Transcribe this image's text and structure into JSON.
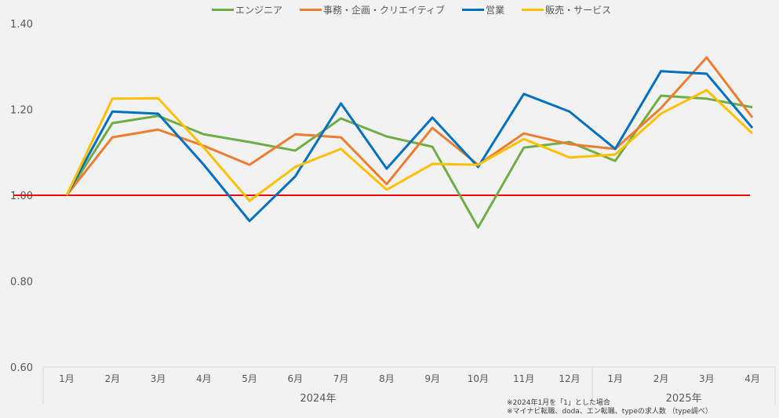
{
  "chart_data": {
    "type": "line",
    "title": "",
    "x": [
      "1月",
      "2月",
      "3月",
      "4月",
      "5月",
      "6月",
      "7月",
      "8月",
      "9月",
      "10月",
      "11月",
      "12月",
      "1月",
      "2月",
      "3月",
      "4月"
    ],
    "year_groups": [
      {
        "label": "2024年",
        "count": 12
      },
      {
        "label": "2025年",
        "count": 4
      }
    ],
    "ylim": [
      0.6,
      1.4
    ],
    "yticks": [
      "0.60",
      "0.80",
      "1.00",
      "1.20",
      "1.40"
    ],
    "yticks_values": [
      0.6,
      0.8,
      1.0,
      1.2,
      1.4
    ],
    "reference_line": {
      "value": 1.0,
      "color": "#ff0000"
    },
    "grid": false,
    "legend_position": "top",
    "series": [
      {
        "name": "エンジニア",
        "color": "#70ad47",
        "values": [
          1.0,
          1.168,
          1.185,
          1.142,
          1.124,
          1.104,
          1.179,
          1.137,
          1.113,
          0.925,
          1.111,
          1.124,
          1.08,
          1.232,
          1.225,
          1.205
        ]
      },
      {
        "name": "事務・企画・クリエイティブ",
        "color": "#ed7d31",
        "values": [
          1.0,
          1.135,
          1.153,
          1.115,
          1.071,
          1.142,
          1.135,
          1.026,
          1.157,
          1.071,
          1.144,
          1.119,
          1.108,
          1.203,
          1.321,
          1.181
        ]
      },
      {
        "name": "営業",
        "color": "#0070c0",
        "values": [
          1.0,
          1.195,
          1.19,
          1.071,
          0.94,
          1.044,
          1.214,
          1.062,
          1.181,
          1.066,
          1.236,
          1.195,
          1.108,
          1.289,
          1.283,
          1.157
        ]
      },
      {
        "name": "販売・サービス",
        "color": "#ffc000",
        "values": [
          1.0,
          1.225,
          1.226,
          1.111,
          0.987,
          1.066,
          1.108,
          1.013,
          1.073,
          1.071,
          1.131,
          1.088,
          1.095,
          1.19,
          1.245,
          1.144
        ]
      }
    ],
    "notes": [
      "※2024年1月を「1」とした場合",
      "※マイナビ転職、doda、エン転職、typeの求人数 （type調べ）"
    ]
  }
}
